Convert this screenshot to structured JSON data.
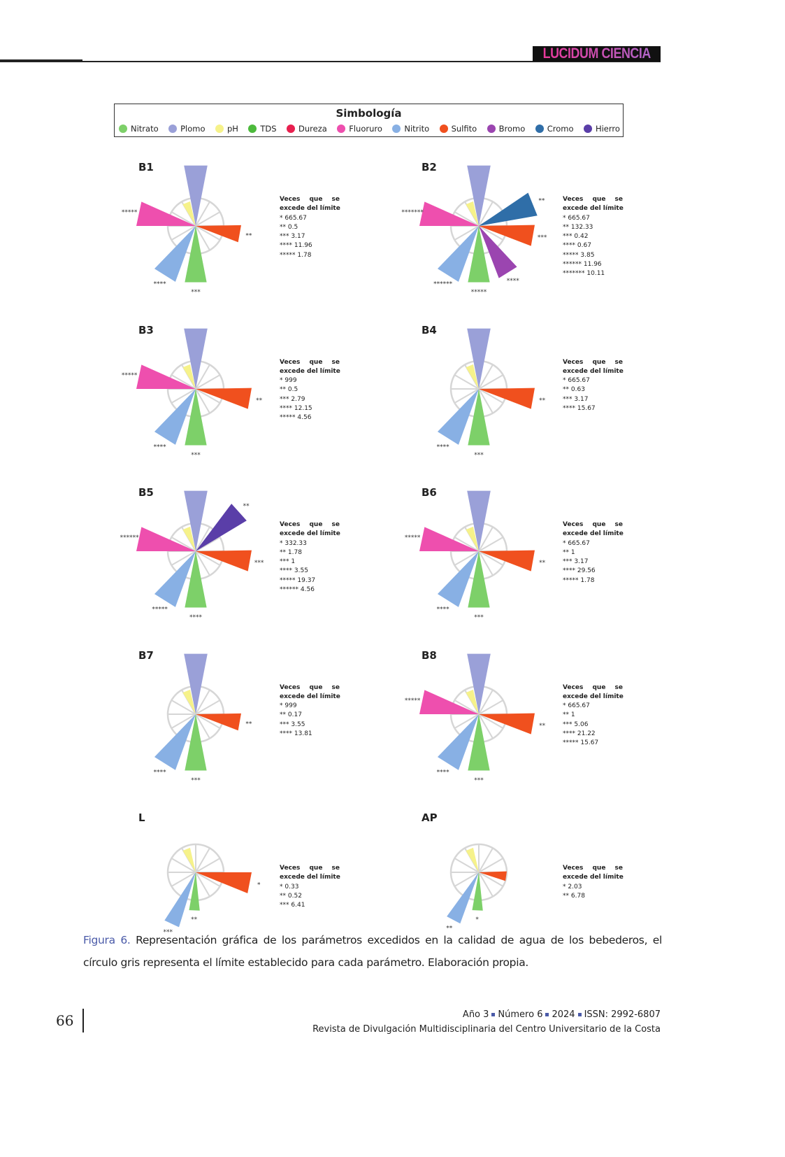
{
  "header": {
    "logo": "LUCIDUM CIENCIA"
  },
  "legend": {
    "title": "Simbología",
    "items": [
      {
        "label": "Nitrato",
        "color": "#7dd069"
      },
      {
        "label": "Plomo",
        "color": "#9aa0d8"
      },
      {
        "label": "pH",
        "color": "#f6f28a"
      },
      {
        "label": "TDS",
        "color": "#4cba3c"
      },
      {
        "label": "Dureza",
        "color": "#e8204f"
      },
      {
        "label": "Fluoruro",
        "color": "#ee4fae"
      },
      {
        "label": "Nitrito",
        "color": "#88b0e4"
      },
      {
        "label": "Sulfito",
        "color": "#f0501e"
      },
      {
        "label": "Bromo",
        "color": "#9b45b0"
      },
      {
        "label": "Cromo",
        "color": "#2f6ea8"
      },
      {
        "label": "Hierro",
        "color": "#5a3ea8"
      }
    ]
  },
  "chart_data": [
    {
      "type": "polar-area",
      "title": "B1",
      "values_heading": [
        "Veces que se",
        "excede del límite"
      ],
      "wedges": [
        {
          "param": "Plomo",
          "mark": "*"
        },
        {
          "param": "pH",
          "mark": ""
        },
        {
          "param": "Sulfito",
          "mark": "**"
        },
        {
          "param": "Nitrato",
          "mark": "***"
        },
        {
          "param": "Nitrito",
          "mark": "****"
        },
        {
          "param": "Fluoruro",
          "mark": "*****"
        }
      ],
      "values": [
        {
          "mark": "*",
          "value": "665.67"
        },
        {
          "mark": "**",
          "value": "0.5"
        },
        {
          "mark": "***",
          "value": "3.17"
        },
        {
          "mark": "****",
          "value": "11.96"
        },
        {
          "mark": "*****",
          "value": "1.78"
        }
      ]
    },
    {
      "type": "polar-area",
      "title": "B2",
      "values_heading": [
        "Veces que se",
        "excede del límite"
      ],
      "wedges": [
        {
          "param": "Plomo",
          "mark": "*"
        },
        {
          "param": "pH",
          "mark": ""
        },
        {
          "param": "Cromo",
          "mark": "**"
        },
        {
          "param": "Sulfito",
          "mark": "***"
        },
        {
          "param": "Bromo",
          "mark": "****"
        },
        {
          "param": "Nitrato",
          "mark": "*****"
        },
        {
          "param": "Nitrito",
          "mark": "******"
        },
        {
          "param": "Fluoruro",
          "mark": "*******"
        }
      ],
      "values": [
        {
          "mark": "*",
          "value": "665.67"
        },
        {
          "mark": "**",
          "value": "132.33"
        },
        {
          "mark": "***",
          "value": "0.42"
        },
        {
          "mark": "****",
          "value": "0.67"
        },
        {
          "mark": "*****",
          "value": "3.85"
        },
        {
          "mark": "******",
          "value": "11.96"
        },
        {
          "mark": "*******",
          "value": "10.11"
        }
      ]
    },
    {
      "type": "polar-area",
      "title": "B3",
      "values_heading": [
        "Veces que se",
        "excede del límite"
      ],
      "wedges": [
        {
          "param": "Plomo",
          "mark": "*"
        },
        {
          "param": "pH",
          "mark": ""
        },
        {
          "param": "Sulfito",
          "mark": "**"
        },
        {
          "param": "Nitrato",
          "mark": "***"
        },
        {
          "param": "Nitrito",
          "mark": "****"
        },
        {
          "param": "Fluoruro",
          "mark": "*****"
        }
      ],
      "values": [
        {
          "mark": "*",
          "value": "999"
        },
        {
          "mark": "**",
          "value": "0.5"
        },
        {
          "mark": "***",
          "value": "2.79"
        },
        {
          "mark": "****",
          "value": "12.15"
        },
        {
          "mark": "*****",
          "value": "4.56"
        }
      ]
    },
    {
      "type": "polar-area",
      "title": "B4",
      "values_heading": [
        "Veces que se",
        "excede del límite"
      ],
      "wedges": [
        {
          "param": "Plomo",
          "mark": "*"
        },
        {
          "param": "pH",
          "mark": ""
        },
        {
          "param": "Sulfito",
          "mark": "**"
        },
        {
          "param": "Nitrato",
          "mark": "***"
        },
        {
          "param": "Nitrito",
          "mark": "****"
        }
      ],
      "values": [
        {
          "mark": "*",
          "value": "665.67"
        },
        {
          "mark": "**",
          "value": "0.63"
        },
        {
          "mark": "***",
          "value": "3.17"
        },
        {
          "mark": "****",
          "value": "15.67"
        }
      ]
    },
    {
      "type": "polar-area",
      "title": "B5",
      "values_heading": [
        "Veces que se",
        "excede del límite"
      ],
      "wedges": [
        {
          "param": "Plomo",
          "mark": "*"
        },
        {
          "param": "pH",
          "mark": ""
        },
        {
          "param": "Hierro",
          "mark": "**"
        },
        {
          "param": "Sulfito",
          "mark": "***"
        },
        {
          "param": "Nitrato",
          "mark": "****"
        },
        {
          "param": "Nitrito",
          "mark": "*****"
        },
        {
          "param": "Fluoruro",
          "mark": "******"
        }
      ],
      "values": [
        {
          "mark": "*",
          "value": "332.33"
        },
        {
          "mark": "**",
          "value": "1.78"
        },
        {
          "mark": "***",
          "value": "1"
        },
        {
          "mark": "****",
          "value": "3.55"
        },
        {
          "mark": "*****",
          "value": "19.37"
        },
        {
          "mark": "******",
          "value": "4.56"
        }
      ]
    },
    {
      "type": "polar-area",
      "title": "B6",
      "values_heading": [
        "Veces que se",
        "excede del límite"
      ],
      "wedges": [
        {
          "param": "Plomo",
          "mark": "*"
        },
        {
          "param": "pH",
          "mark": ""
        },
        {
          "param": "Sulfito",
          "mark": "**"
        },
        {
          "param": "Nitrato",
          "mark": "***"
        },
        {
          "param": "Nitrito",
          "mark": "****"
        },
        {
          "param": "Fluoruro",
          "mark": "*****"
        }
      ],
      "values": [
        {
          "mark": "*",
          "value": "665.67"
        },
        {
          "mark": "**",
          "value": "1"
        },
        {
          "mark": "***",
          "value": "3.17"
        },
        {
          "mark": "****",
          "value": "29.56"
        },
        {
          "mark": "*****",
          "value": "1.78"
        }
      ]
    },
    {
      "type": "polar-area",
      "title": "B7",
      "values_heading": [
        "Veces que se",
        "excede del límite"
      ],
      "wedges": [
        {
          "param": "Plomo",
          "mark": "*"
        },
        {
          "param": "pH",
          "mark": ""
        },
        {
          "param": "Sulfito",
          "mark": "**"
        },
        {
          "param": "Nitrato",
          "mark": "***"
        },
        {
          "param": "Nitrito",
          "mark": "****"
        }
      ],
      "values": [
        {
          "mark": "*",
          "value": "999"
        },
        {
          "mark": "**",
          "value": "0.17"
        },
        {
          "mark": "***",
          "value": "3.55"
        },
        {
          "mark": "****",
          "value": "13.81"
        }
      ]
    },
    {
      "type": "polar-area",
      "title": "B8",
      "values_heading": [
        "Veces que se",
        "excede del límite"
      ],
      "wedges": [
        {
          "param": "Plomo",
          "mark": "*"
        },
        {
          "param": "pH",
          "mark": ""
        },
        {
          "param": "Sulfito",
          "mark": "**"
        },
        {
          "param": "Nitrato",
          "mark": "***"
        },
        {
          "param": "Nitrito",
          "mark": "****"
        },
        {
          "param": "Fluoruro",
          "mark": "*****"
        }
      ],
      "values": [
        {
          "mark": "*",
          "value": "665.67"
        },
        {
          "mark": "**",
          "value": "1"
        },
        {
          "mark": "***",
          "value": "5.06"
        },
        {
          "mark": "****",
          "value": "21.22"
        },
        {
          "mark": "*****",
          "value": "15.67"
        }
      ]
    },
    {
      "type": "polar-area",
      "title": "L",
      "values_heading": [
        "Veces que se",
        "excede del límite"
      ],
      "wedges": [
        {
          "param": "pH",
          "mark": ""
        },
        {
          "param": "Sulfito",
          "mark": "*"
        },
        {
          "param": "Nitrato",
          "mark": "**"
        },
        {
          "param": "Nitrito",
          "mark": "***"
        }
      ],
      "values": [
        {
          "mark": "*",
          "value": "0.33"
        },
        {
          "mark": "**",
          "value": "0.52"
        },
        {
          "mark": "***",
          "value": "6.41"
        }
      ]
    },
    {
      "type": "polar-area",
      "title": "AP",
      "values_heading": [
        "Veces que se",
        "excede del límite"
      ],
      "wedges": [
        {
          "param": "pH",
          "mark": ""
        },
        {
          "param": "Sulfito",
          "mark": ""
        },
        {
          "param": "Nitrato",
          "mark": "*"
        },
        {
          "param": "Nitrito",
          "mark": "**"
        }
      ],
      "values": [
        {
          "mark": "*",
          "value": "2.03"
        },
        {
          "mark": "**",
          "value": "6.78"
        }
      ]
    }
  ],
  "caption": {
    "label": "Figura 6.",
    "text": " Representación gráfica de los parámetros excedidos en la calidad de agua de los bebederos, el círculo gris representa el límite establecido para cada parámetro. Elaboración propia."
  },
  "footer": {
    "page": "66",
    "year": "Año 3",
    "number": "Número 6",
    "date": "2024",
    "issn": "ISSN: 2992-6807",
    "journal": "Revista de Divulgación Multidisciplinaria del Centro Universitario de la Costa"
  }
}
